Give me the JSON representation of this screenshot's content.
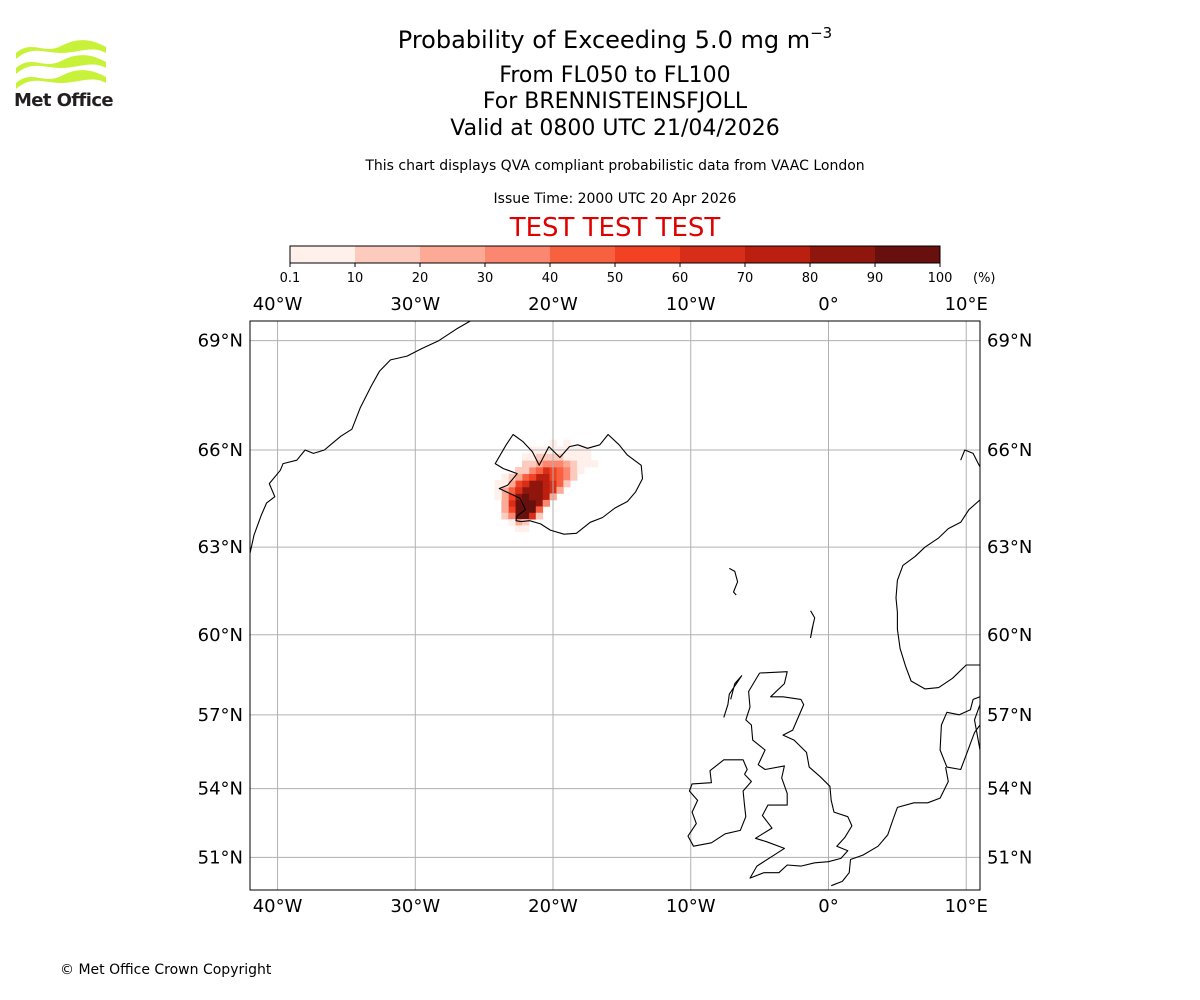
{
  "logo": {
    "text": "Met Office",
    "icon": "met-office-waves-logo",
    "color": "#c8f23a"
  },
  "titles": {
    "main_prefix": "Probability of Exceeding 5.0 mg m",
    "main_exponent": "−3",
    "levels": "From FL050 to FL100",
    "volcano": "For BRENNISTEINSFJOLL",
    "valid": "Valid at 0800 UTC 21/04/2026",
    "source_note": "This chart displays QVA compliant probabilistic data from VAAC London",
    "issue_time": "Issue Time: 2000 UTC 20 Apr 2026",
    "test_banner": "TEST TEST TEST",
    "test_banner_color": "#e00000"
  },
  "colorbar": {
    "unit_label": "(%)",
    "tick_labels": [
      "0.1",
      "10",
      "20",
      "30",
      "40",
      "50",
      "60",
      "70",
      "80",
      "90",
      "100"
    ],
    "bin_colors": [
      "#fff0eb",
      "#fccbbe",
      "#fca996",
      "#fb8770",
      "#f7613f",
      "#f24223",
      "#d72e1a",
      "#bb1f10",
      "#8f160d",
      "#67100d"
    ]
  },
  "map": {
    "lon_range": [
      -42,
      11
    ],
    "lat_range": [
      49.5,
      69.5
    ],
    "lon_ticks": [
      {
        "value": -40,
        "label": "40°W"
      },
      {
        "value": -30,
        "label": "30°W"
      },
      {
        "value": -20,
        "label": "20°W"
      },
      {
        "value": -10,
        "label": "10°W"
      },
      {
        "value": 0,
        "label": "0°"
      },
      {
        "value": 10,
        "label": "10°E"
      }
    ],
    "lat_ticks": [
      {
        "value": 69,
        "label": "69°N"
      },
      {
        "value": 66,
        "label": "66°N"
      },
      {
        "value": 63,
        "label": "63°N"
      },
      {
        "value": 60,
        "label": "60°N"
      },
      {
        "value": 57,
        "label": "57°N"
      },
      {
        "value": 54,
        "label": "54°N"
      },
      {
        "value": 51,
        "label": "51°N"
      }
    ],
    "gridline_color": "#b0b0b0",
    "coast_color": "#000000"
  },
  "probability_cells": [
    {
      "lon": -22.5,
      "lat": 64.0,
      "p": 100
    },
    {
      "lon": -22.0,
      "lat": 64.0,
      "p": 100
    },
    {
      "lon": -22.5,
      "lat": 64.2,
      "p": 95
    },
    {
      "lon": -22.0,
      "lat": 64.2,
      "p": 95
    },
    {
      "lon": -21.5,
      "lat": 64.2,
      "p": 90
    },
    {
      "lon": -22.5,
      "lat": 64.4,
      "p": 92
    },
    {
      "lon": -22.0,
      "lat": 64.4,
      "p": 95
    },
    {
      "lon": -21.5,
      "lat": 64.4,
      "p": 90
    },
    {
      "lon": -21.0,
      "lat": 64.4,
      "p": 80
    },
    {
      "lon": -22.5,
      "lat": 64.6,
      "p": 85
    },
    {
      "lon": -22.0,
      "lat": 64.6,
      "p": 90
    },
    {
      "lon": -21.5,
      "lat": 64.6,
      "p": 88
    },
    {
      "lon": -21.0,
      "lat": 64.6,
      "p": 80
    },
    {
      "lon": -20.5,
      "lat": 64.6,
      "p": 70
    },
    {
      "lon": -22.0,
      "lat": 64.8,
      "p": 85
    },
    {
      "lon": -21.5,
      "lat": 64.8,
      "p": 85
    },
    {
      "lon": -21.0,
      "lat": 64.8,
      "p": 80
    },
    {
      "lon": -20.5,
      "lat": 64.8,
      "p": 75
    },
    {
      "lon": -20.0,
      "lat": 64.8,
      "p": 60
    },
    {
      "lon": -21.5,
      "lat": 65.0,
      "p": 80
    },
    {
      "lon": -21.0,
      "lat": 65.0,
      "p": 80
    },
    {
      "lon": -20.5,
      "lat": 65.0,
      "p": 75
    },
    {
      "lon": -20.0,
      "lat": 65.0,
      "p": 60
    },
    {
      "lon": -19.5,
      "lat": 65.0,
      "p": 45
    },
    {
      "lon": -21.0,
      "lat": 65.2,
      "p": 75
    },
    {
      "lon": -20.5,
      "lat": 65.2,
      "p": 70
    },
    {
      "lon": -20.0,
      "lat": 65.2,
      "p": 55
    },
    {
      "lon": -19.5,
      "lat": 65.2,
      "p": 45
    },
    {
      "lon": -19.0,
      "lat": 65.2,
      "p": 35
    },
    {
      "lon": -20.5,
      "lat": 65.4,
      "p": 60
    },
    {
      "lon": -20.0,
      "lat": 65.4,
      "p": 50
    },
    {
      "lon": -19.5,
      "lat": 65.4,
      "p": 40
    },
    {
      "lon": -19.0,
      "lat": 65.4,
      "p": 30
    },
    {
      "lon": -18.5,
      "lat": 65.4,
      "p": 15
    },
    {
      "lon": -20.0,
      "lat": 65.6,
      "p": 35
    },
    {
      "lon": -19.5,
      "lat": 65.6,
      "p": 30
    },
    {
      "lon": -19.0,
      "lat": 65.6,
      "p": 20
    },
    {
      "lon": -18.5,
      "lat": 65.6,
      "p": 10
    },
    {
      "lon": -18.0,
      "lat": 65.6,
      "p": 5
    },
    {
      "lon": -19.5,
      "lat": 65.8,
      "p": 10
    },
    {
      "lon": -19.0,
      "lat": 65.8,
      "p": 8
    },
    {
      "lon": -18.5,
      "lat": 65.8,
      "p": 5
    },
    {
      "lon": -18.0,
      "lat": 65.8,
      "p": 3
    },
    {
      "lon": -23.0,
      "lat": 64.2,
      "p": 50
    },
    {
      "lon": -23.0,
      "lat": 64.4,
      "p": 60
    },
    {
      "lon": -23.0,
      "lat": 64.6,
      "p": 55
    },
    {
      "lon": -23.0,
      "lat": 64.8,
      "p": 45
    },
    {
      "lon": -22.5,
      "lat": 64.8,
      "p": 65
    },
    {
      "lon": -22.5,
      "lat": 65.0,
      "p": 50
    },
    {
      "lon": -22.0,
      "lat": 65.0,
      "p": 60
    },
    {
      "lon": -22.0,
      "lat": 65.2,
      "p": 40
    },
    {
      "lon": -21.5,
      "lat": 65.2,
      "p": 55
    },
    {
      "lon": -21.5,
      "lat": 65.4,
      "p": 35
    },
    {
      "lon": -21.0,
      "lat": 65.4,
      "p": 45
    },
    {
      "lon": -21.0,
      "lat": 65.6,
      "p": 25
    },
    {
      "lon": -20.5,
      "lat": 65.6,
      "p": 30
    },
    {
      "lon": -23.5,
      "lat": 64.2,
      "p": 20
    },
    {
      "lon": -23.5,
      "lat": 64.4,
      "p": 25
    },
    {
      "lon": -23.5,
      "lat": 64.6,
      "p": 25
    },
    {
      "lon": -23.5,
      "lat": 64.8,
      "p": 20
    },
    {
      "lon": -23.0,
      "lat": 65.0,
      "p": 20
    },
    {
      "lon": -23.0,
      "lat": 65.2,
      "p": 12
    },
    {
      "lon": -22.5,
      "lat": 65.2,
      "p": 20
    },
    {
      "lon": -22.5,
      "lat": 65.4,
      "p": 12
    },
    {
      "lon": -22.0,
      "lat": 65.4,
      "p": 18
    },
    {
      "lon": -22.0,
      "lat": 65.6,
      "p": 10
    },
    {
      "lon": -21.5,
      "lat": 65.6,
      "p": 15
    },
    {
      "lon": -21.5,
      "lat": 65.8,
      "p": 6
    },
    {
      "lon": -21.0,
      "lat": 65.8,
      "p": 10
    },
    {
      "lon": -20.5,
      "lat": 65.8,
      "p": 12
    },
    {
      "lon": -20.0,
      "lat": 65.8,
      "p": 12
    },
    {
      "lon": -23.5,
      "lat": 64.0,
      "p": 10
    },
    {
      "lon": -23.0,
      "lat": 64.0,
      "p": 30
    },
    {
      "lon": -23.5,
      "lat": 65.0,
      "p": 8
    },
    {
      "lon": -22.5,
      "lat": 63.8,
      "p": 20
    },
    {
      "lon": -22.0,
      "lat": 63.8,
      "p": 15
    },
    {
      "lon": -23.0,
      "lat": 63.8,
      "p": 8
    },
    {
      "lon": -22.5,
      "lat": 63.6,
      "p": 8
    },
    {
      "lon": -22.0,
      "lat": 63.6,
      "p": 6
    },
    {
      "lon": -21.5,
      "lat": 64.0,
      "p": 60
    },
    {
      "lon": -21.0,
      "lat": 64.2,
      "p": 45
    },
    {
      "lon": -21.0,
      "lat": 64.0,
      "p": 15
    },
    {
      "lon": -20.5,
      "lat": 64.4,
      "p": 30
    },
    {
      "lon": -20.0,
      "lat": 64.6,
      "p": 25
    },
    {
      "lon": -19.5,
      "lat": 64.8,
      "p": 20
    },
    {
      "lon": -19.0,
      "lat": 65.0,
      "p": 15
    },
    {
      "lon": -18.5,
      "lat": 65.2,
      "p": 10
    },
    {
      "lon": -18.0,
      "lat": 65.4,
      "p": 6
    },
    {
      "lon": -17.5,
      "lat": 65.6,
      "p": 3
    },
    {
      "lon": -22.0,
      "lat": 65.8,
      "p": 4
    },
    {
      "lon": -21.5,
      "lat": 66.0,
      "p": 3
    },
    {
      "lon": -21.0,
      "lat": 66.0,
      "p": 5
    },
    {
      "lon": -20.5,
      "lat": 66.0,
      "p": 5
    },
    {
      "lon": -20.0,
      "lat": 66.0,
      "p": 6
    },
    {
      "lon": -19.5,
      "lat": 66.0,
      "p": 4
    },
    {
      "lon": -19.0,
      "lat": 66.0,
      "p": 4
    },
    {
      "lon": -18.5,
      "lat": 66.0,
      "p": 3
    },
    {
      "lon": -17.5,
      "lat": 65.8,
      "p": 2
    },
    {
      "lon": -17.0,
      "lat": 65.6,
      "p": 1
    },
    {
      "lon": -19.0,
      "lat": 66.2,
      "p": 2
    },
    {
      "lon": -18.0,
      "lat": 66.0,
      "p": 2
    },
    {
      "lon": -17.5,
      "lat": 66.0,
      "p": 1
    },
    {
      "lon": -20.0,
      "lat": 66.2,
      "p": 2
    },
    {
      "lon": -24.0,
      "lat": 64.6,
      "p": 3
    },
    {
      "lon": -24.0,
      "lat": 64.8,
      "p": 3
    },
    {
      "lon": -24.0,
      "lat": 65.0,
      "p": 2
    },
    {
      "lon": -23.5,
      "lat": 65.2,
      "p": 3
    }
  ],
  "copyright": "© Met Office Crown Copyright"
}
